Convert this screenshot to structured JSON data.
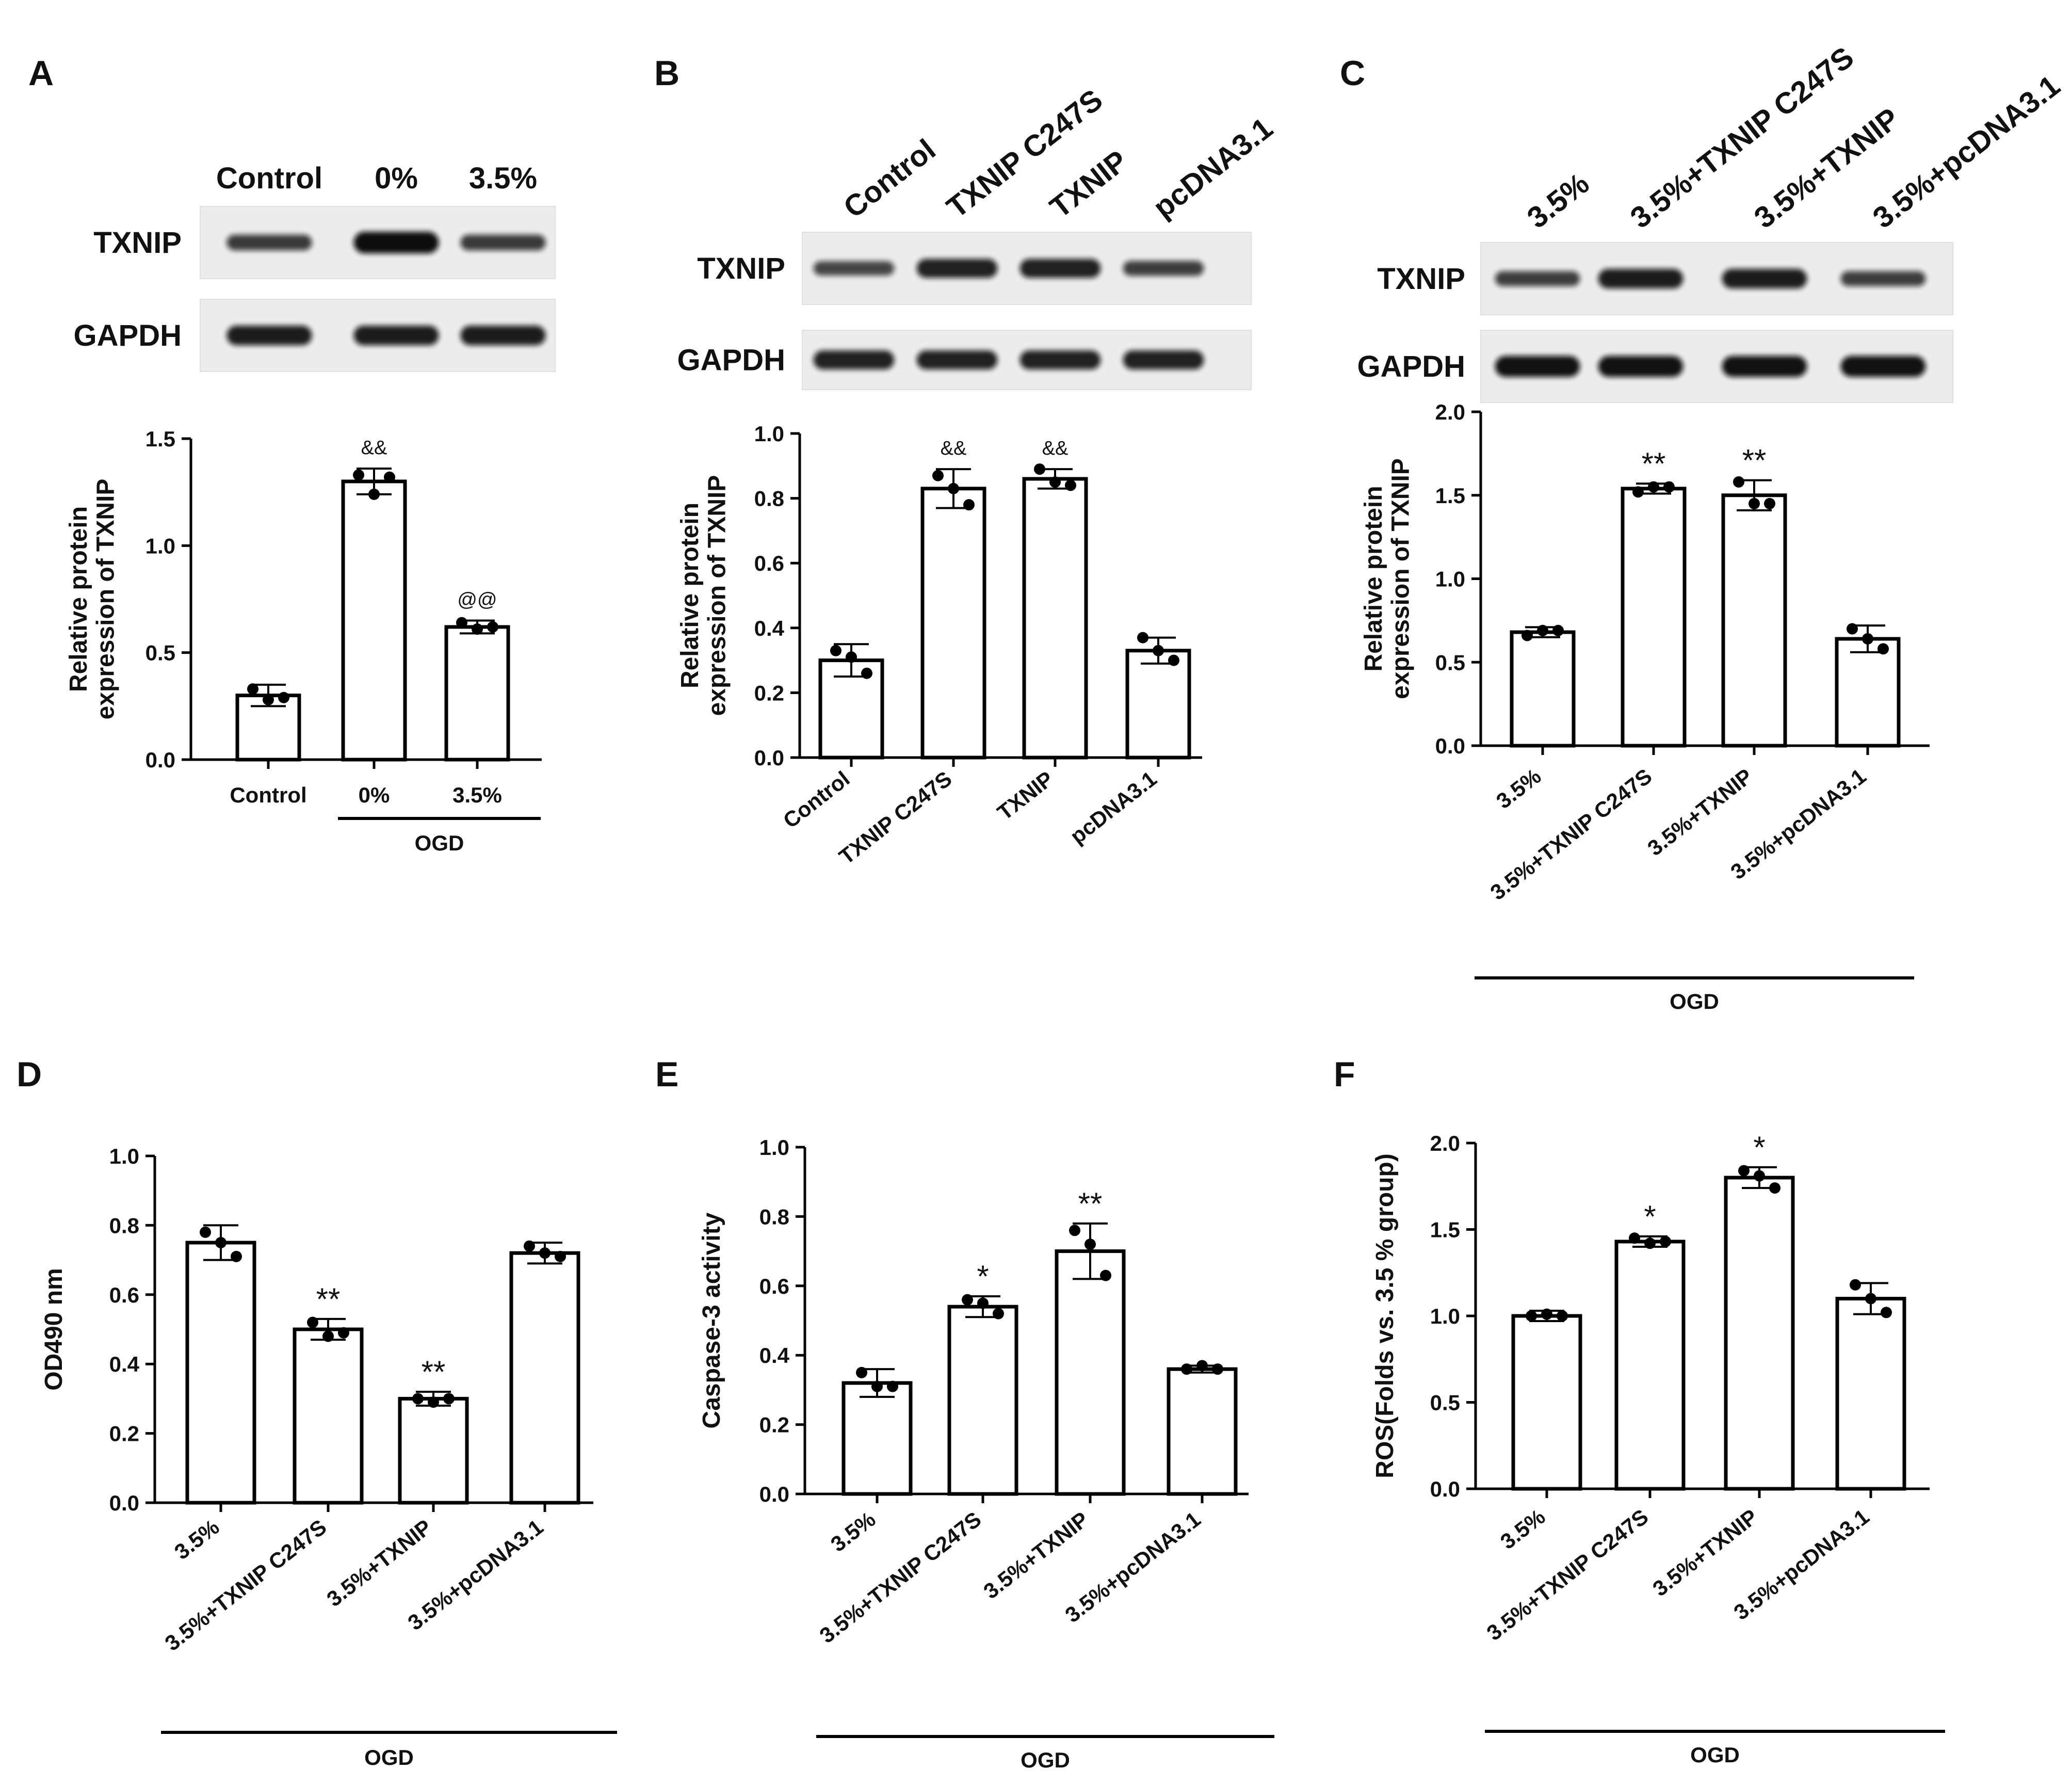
{
  "panels": [
    {
      "letter": "A",
      "blot": {
        "lane_labels": [
          "Control",
          "0%",
          "3.5%"
        ],
        "row_labels": [
          "TXNIP",
          "GAPDH"
        ],
        "bands": {
          "TXNIP": [
            0.55,
            1.0,
            0.55
          ],
          "GAPDH": [
            0.85,
            0.85,
            0.85
          ]
        }
      },
      "group_label": "OGD",
      "group_range": [
        1,
        2
      ]
    },
    {
      "letter": "B",
      "blot": {
        "lane_labels": [
          "Control",
          "TXNIP C247S",
          "TXNIP",
          "pcDNA3.1"
        ],
        "row_labels": [
          "TXNIP",
          "GAPDH"
        ],
        "bands": {
          "TXNIP": [
            0.45,
            0.8,
            0.8,
            0.5
          ],
          "GAPDH": [
            0.8,
            0.8,
            0.8,
            0.8
          ]
        }
      },
      "group_label": "",
      "group_range": null
    },
    {
      "letter": "C",
      "blot": {
        "lane_labels": [
          "3.5%",
          "3.5%+TXNIP C247S",
          "3.5%+TXNIP",
          "3.5%+pcDNA3.1"
        ],
        "row_labels": [
          "TXNIP",
          "GAPDH"
        ],
        "bands": {
          "TXNIP": [
            0.5,
            0.85,
            0.85,
            0.5
          ],
          "GAPDH": [
            0.95,
            0.95,
            0.95,
            0.95
          ]
        }
      },
      "group_label": "OGD",
      "group_range": [
        0,
        3
      ]
    },
    {
      "letter": "D",
      "blot": null,
      "group_label": "OGD",
      "group_range": [
        0,
        3
      ]
    },
    {
      "letter": "E",
      "blot": null,
      "group_label": "OGD",
      "group_range": [
        0,
        3
      ]
    },
    {
      "letter": "F",
      "blot": null,
      "group_label": "OGD",
      "group_range": [
        0,
        3
      ]
    }
  ],
  "chart_data": [
    {
      "panel": "A",
      "type": "bar",
      "categories": [
        "Control",
        "0%",
        "3.5%"
      ],
      "values": [
        0.3,
        1.3,
        0.62
      ],
      "errors": [
        0.05,
        0.06,
        0.03
      ],
      "points": [
        [
          0.33,
          0.28,
          0.29
        ],
        [
          1.33,
          1.24,
          1.32
        ],
        [
          0.64,
          0.61,
          0.62
        ]
      ],
      "significance": [
        "",
        "&&",
        "@@"
      ],
      "xlabel": "",
      "ylabel": "Relative protein expression of TXNIP",
      "ylim": [
        0,
        1.5
      ],
      "yticks": [
        0.0,
        0.5,
        1.0,
        1.5
      ],
      "ytick_labels": [
        "0.0",
        "0.5",
        "1.0",
        "1.5"
      ]
    },
    {
      "panel": "B",
      "type": "bar",
      "categories": [
        "Control",
        "TXNIP C247S",
        "TXNIP",
        "pcDNA3.1"
      ],
      "values": [
        0.3,
        0.83,
        0.86,
        0.33
      ],
      "errors": [
        0.05,
        0.06,
        0.03,
        0.04
      ],
      "points": [
        [
          0.33,
          0.31,
          0.26
        ],
        [
          0.87,
          0.83,
          0.78
        ],
        [
          0.89,
          0.85,
          0.84
        ],
        [
          0.37,
          0.33,
          0.3
        ]
      ],
      "significance": [
        "",
        "&&",
        "&&",
        ""
      ],
      "xlabel": "",
      "ylabel": "Relative protein expression of TXNIP",
      "ylim": [
        0,
        1.0
      ],
      "yticks": [
        0.0,
        0.2,
        0.4,
        0.6,
        0.8,
        1.0
      ],
      "ytick_labels": [
        "0.0",
        "0.2",
        "0.4",
        "0.6",
        "0.8",
        "1.0"
      ]
    },
    {
      "panel": "C",
      "type": "bar",
      "categories": [
        "3.5%",
        "3.5%+TXNIP C247S",
        "3.5%+TXNIP",
        "3.5%+pcDNA3.1"
      ],
      "values": [
        0.68,
        1.54,
        1.5,
        0.64
      ],
      "errors": [
        0.03,
        0.03,
        0.09,
        0.08
      ],
      "points": [
        [
          0.66,
          0.69,
          0.69
        ],
        [
          1.52,
          1.55,
          1.55
        ],
        [
          1.58,
          1.45,
          1.45
        ],
        [
          0.7,
          0.64,
          0.58
        ]
      ],
      "significance": [
        "",
        "**",
        "**",
        ""
      ],
      "xlabel": "",
      "ylabel": "Relative protein expression of TXNIP",
      "ylim": [
        0,
        2.0
      ],
      "yticks": [
        0.0,
        0.5,
        1.0,
        1.5,
        2.0
      ],
      "ytick_labels": [
        "0.0",
        "0.5",
        "1.0",
        "1.5",
        "2.0"
      ]
    },
    {
      "panel": "D",
      "type": "bar",
      "categories": [
        "3.5%",
        "3.5%+TXNIP C247S",
        "3.5%+TXNIP",
        "3.5%+pcDNA3.1"
      ],
      "values": [
        0.75,
        0.5,
        0.3,
        0.72
      ],
      "errors": [
        0.05,
        0.03,
        0.02,
        0.03
      ],
      "points": [
        [
          0.78,
          0.75,
          0.71
        ],
        [
          0.52,
          0.48,
          0.49
        ],
        [
          0.3,
          0.29,
          0.3
        ],
        [
          0.74,
          0.72,
          0.71
        ]
      ],
      "significance": [
        "",
        "**",
        "**",
        ""
      ],
      "xlabel": "",
      "ylabel": "OD490 nm",
      "ylim": [
        0,
        1.0
      ],
      "yticks": [
        0.0,
        0.2,
        0.4,
        0.6,
        0.8,
        1.0
      ],
      "ytick_labels": [
        "0.0",
        "0.2",
        "0.4",
        "0.6",
        "0.8",
        "1.0"
      ]
    },
    {
      "panel": "E",
      "type": "bar",
      "categories": [
        "3.5%",
        "3.5%+TXNIP C247S",
        "3.5%+TXNIP",
        "3.5%+pcDNA3.1"
      ],
      "values": [
        0.32,
        0.54,
        0.7,
        0.36
      ],
      "errors": [
        0.04,
        0.03,
        0.08,
        0.01
      ],
      "points": [
        [
          0.35,
          0.31,
          0.31
        ],
        [
          0.56,
          0.55,
          0.52
        ],
        [
          0.76,
          0.72,
          0.63
        ],
        [
          0.36,
          0.37,
          0.36
        ]
      ],
      "significance": [
        "",
        "*",
        "**",
        ""
      ],
      "xlabel": "",
      "ylabel": "Caspase-3 activity",
      "ylim": [
        0,
        1.0
      ],
      "yticks": [
        0.0,
        0.2,
        0.4,
        0.6,
        0.8,
        1.0
      ],
      "ytick_labels": [
        "0.0",
        "0.2",
        "0.4",
        "0.6",
        "0.8",
        "1.0"
      ]
    },
    {
      "panel": "F",
      "type": "bar",
      "categories": [
        "3.5%",
        "3.5%+TXNIP C247S",
        "3.5%+TXNIP",
        "3.5%+pcDNA3.1"
      ],
      "values": [
        1.0,
        1.43,
        1.8,
        1.1
      ],
      "errors": [
        0.03,
        0.03,
        0.06,
        0.09
      ],
      "points": [
        [
          1.0,
          1.01,
          1.0
        ],
        [
          1.45,
          1.42,
          1.43
        ],
        [
          1.84,
          1.81,
          1.74
        ],
        [
          1.18,
          1.1,
          1.02
        ]
      ],
      "significance": [
        "",
        "*",
        "*",
        ""
      ],
      "xlabel": "",
      "ylabel": "ROS(Folds vs. 3.5 % group)",
      "ylim": [
        0,
        2.0
      ],
      "yticks": [
        0.0,
        0.5,
        1.0,
        1.5,
        2.0
      ],
      "ytick_labels": [
        "0.0",
        "0.5",
        "1.0",
        "1.5",
        "2.0"
      ]
    }
  ]
}
